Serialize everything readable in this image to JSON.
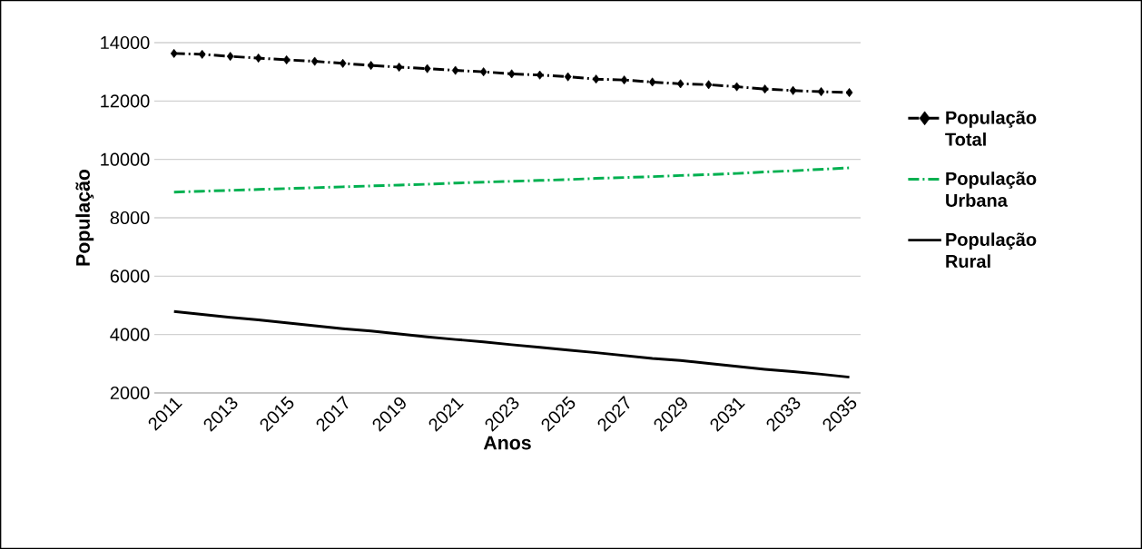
{
  "chart_data": {
    "type": "line",
    "xlabel": "Anos",
    "ylabel": "População",
    "x": [
      2011,
      2012,
      2013,
      2014,
      2015,
      2016,
      2017,
      2018,
      2019,
      2020,
      2021,
      2022,
      2023,
      2024,
      2025,
      2026,
      2027,
      2028,
      2029,
      2030,
      2031,
      2032,
      2033,
      2034,
      2035
    ],
    "xlim": [
      2010.3,
      2035.4
    ],
    "xticks": [
      2011,
      2013,
      2015,
      2017,
      2019,
      2021,
      2023,
      2025,
      2027,
      2029,
      2031,
      2033,
      2035
    ],
    "ylim": [
      2000,
      14000
    ],
    "yticks": [
      2000,
      4000,
      6000,
      8000,
      10000,
      12000,
      14000
    ],
    "grid": "y",
    "legend": "right",
    "series": [
      {
        "name": "População Total",
        "color": "#000000",
        "marker": "diamond",
        "line_style": "dashed",
        "values": [
          13630,
          13600,
          13530,
          13470,
          13410,
          13360,
          13290,
          13220,
          13160,
          13110,
          13050,
          13000,
          12930,
          12890,
          12830,
          12750,
          12720,
          12650,
          12590,
          12560,
          12490,
          12410,
          12360,
          12320,
          12290
        ]
      },
      {
        "name": "População Urbana",
        "color": "#00b050",
        "marker": "none",
        "line_style": "dashed",
        "values": [
          8880,
          8910,
          8940,
          8970,
          9000,
          9030,
          9060,
          9090,
          9120,
          9150,
          9190,
          9220,
          9250,
          9280,
          9310,
          9350,
          9380,
          9410,
          9450,
          9480,
          9520,
          9570,
          9610,
          9660,
          9710
        ]
      },
      {
        "name": "População Rural",
        "color": "#000000",
        "marker": "none",
        "line_style": "solid",
        "values": [
          4790,
          4690,
          4590,
          4500,
          4400,
          4300,
          4200,
          4120,
          4020,
          3920,
          3830,
          3750,
          3650,
          3560,
          3470,
          3380,
          3280,
          3180,
          3110,
          3010,
          2910,
          2810,
          2730,
          2640,
          2540
        ]
      }
    ]
  }
}
